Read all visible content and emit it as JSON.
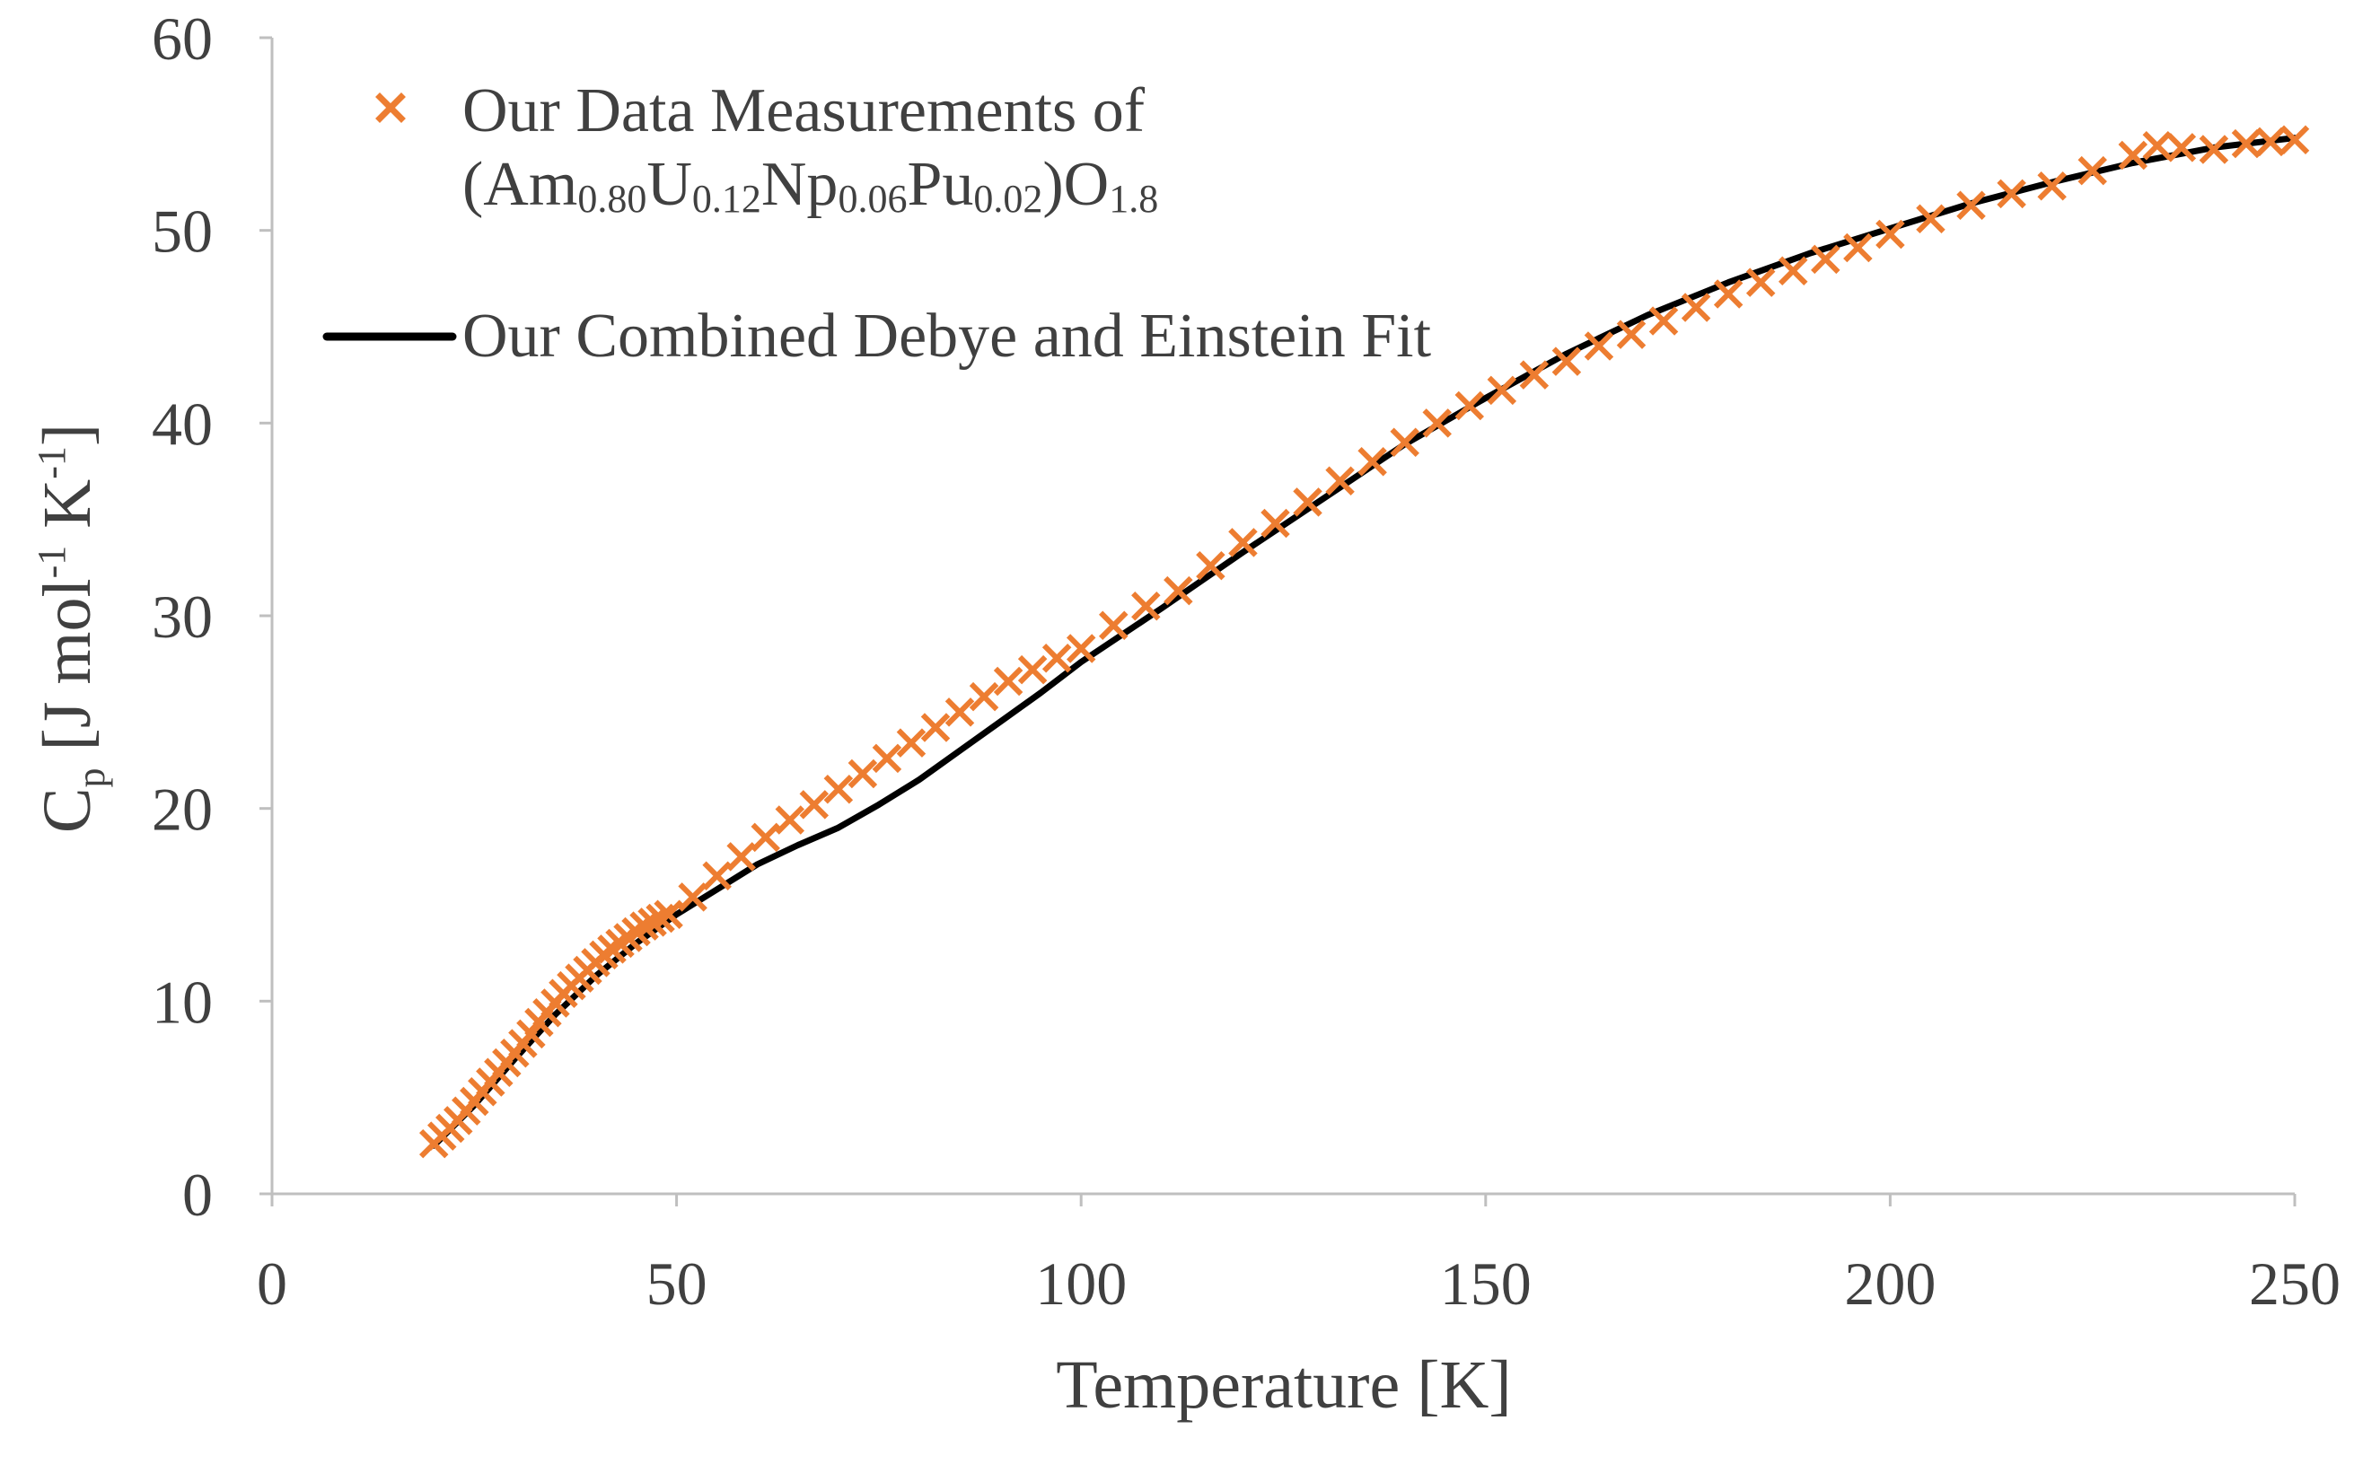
{
  "chart_data": {
    "type": "scatter",
    "title": "",
    "xlabel": "Temperature [K]",
    "ylabel": {
      "prefix": "C",
      "subscript": "p",
      "units_open": " [J mol",
      "units_exp1": "-1",
      "units_mid": " K",
      "units_exp2": "-1",
      "units_close": "]"
    },
    "xlim": [
      0,
      250
    ],
    "ylim": [
      0,
      60
    ],
    "xticks": [
      0,
      50,
      100,
      150,
      200,
      250
    ],
    "yticks": [
      0,
      10,
      20,
      30,
      40,
      50,
      60
    ],
    "grid": false,
    "legend_position": "top-left",
    "colors": {
      "data": "#ED7D31",
      "fit": "#000000",
      "axis": "#BFBFBF",
      "text": "#404040"
    },
    "series": [
      {
        "name": "Our Data Measurements of",
        "legend_line1": "Our Data Measurements of",
        "legend_formula": [
          {
            "t": "(Am",
            "s": false
          },
          {
            "t": "0.80",
            "s": true
          },
          {
            "t": "U",
            "s": false
          },
          {
            "t": "0.12",
            "s": true
          },
          {
            "t": "Np",
            "s": false
          },
          {
            "t": "0.06",
            "s": true
          },
          {
            "t": "Pu",
            "s": false
          },
          {
            "t": "0.02",
            "s": true
          },
          {
            "t": ")O",
            "s": false
          },
          {
            "t": "1.8",
            "s": true
          }
        ],
        "marker": "x",
        "x": [
          20,
          21,
          22,
          23,
          24,
          25,
          26,
          27,
          28,
          29,
          30,
          31,
          32,
          33,
          34,
          35,
          36,
          37,
          38,
          39,
          40,
          41,
          42,
          43,
          44,
          45,
          46,
          47,
          48,
          49,
          52,
          55,
          58,
          61,
          64,
          67,
          70,
          73,
          76,
          79,
          82,
          85,
          88,
          91,
          94,
          97,
          100,
          104,
          108,
          112,
          116,
          120,
          124,
          128,
          132,
          136,
          140,
          144,
          148,
          152,
          156,
          160,
          164,
          168,
          172,
          176,
          180,
          184,
          188,
          192,
          196,
          200,
          205,
          210,
          215,
          220,
          225,
          230,
          233,
          236,
          240,
          244,
          247,
          250
        ],
        "values": [
          2.6,
          3.0,
          3.4,
          3.8,
          4.3,
          4.8,
          5.3,
          5.8,
          6.3,
          6.8,
          7.3,
          7.8,
          8.3,
          8.9,
          9.4,
          9.9,
          10.4,
          10.8,
          11.2,
          11.6,
          12.0,
          12.4,
          12.7,
          13.0,
          13.3,
          13.6,
          13.9,
          14.1,
          14.3,
          14.5,
          15.4,
          16.5,
          17.5,
          18.5,
          19.4,
          20.2,
          21.0,
          21.8,
          22.6,
          23.4,
          24.2,
          25.0,
          25.8,
          26.6,
          27.2,
          27.8,
          28.3,
          29.5,
          30.5,
          31.3,
          32.6,
          33.8,
          34.8,
          35.9,
          37.0,
          38.0,
          39.0,
          40.0,
          40.9,
          41.7,
          42.5,
          43.2,
          44.0,
          44.6,
          45.3,
          46.0,
          46.7,
          47.3,
          47.9,
          48.5,
          49.1,
          49.8,
          50.6,
          51.3,
          51.9,
          52.3,
          53.1,
          53.9,
          54.4,
          54.3,
          54.2,
          54.5,
          54.6,
          54.7
        ]
      },
      {
        "name": "Our Combined Debye and Einstein Fit",
        "marker": "line",
        "x": [
          20,
          25,
          30,
          35,
          40,
          45,
          50,
          55,
          60,
          65,
          70,
          75,
          80,
          85,
          90,
          95,
          100,
          110,
          120,
          130,
          140,
          150,
          160,
          170,
          180,
          190,
          200,
          210,
          220,
          230,
          240,
          250
        ],
        "values": [
          2.5,
          4.6,
          7.0,
          9.3,
          11.3,
          13.0,
          14.5,
          15.8,
          17.1,
          18.1,
          19.0,
          20.2,
          21.5,
          23.0,
          24.5,
          26.0,
          27.6,
          30.4,
          33.3,
          36.1,
          38.9,
          41.3,
          43.6,
          45.6,
          47.3,
          48.8,
          50.1,
          51.4,
          52.5,
          53.5,
          54.3,
          54.8
        ]
      }
    ]
  }
}
